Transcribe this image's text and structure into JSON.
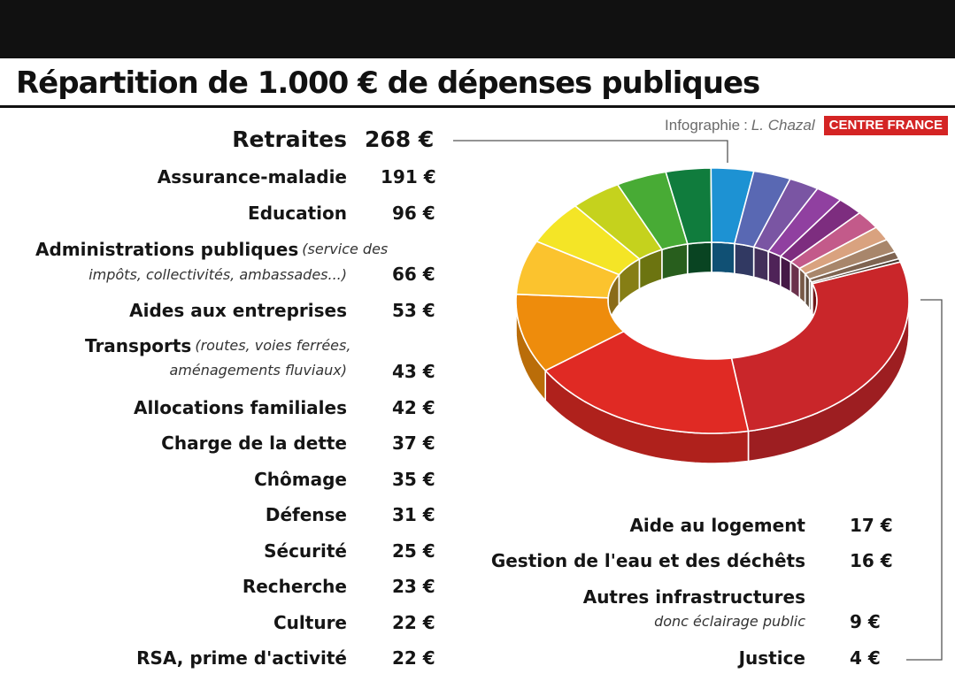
{
  "header": {
    "title": "Répartition de 1.000 € de dépenses publiques",
    "credit_label": "Infographie",
    "credit_sep": ":",
    "credit_author": "L. Chazal",
    "brand": "CENTRE FRANCE"
  },
  "chart_data": {
    "type": "pie",
    "style": "3d-donut",
    "title": "Répartition de 1.000 € de dépenses publiques",
    "unit": "€",
    "total": 1000,
    "slices": [
      {
        "label": "Retraites",
        "value": 268,
        "display": "268 €",
        "color": "#c9262a"
      },
      {
        "label": "Assurance-maladie",
        "value": 191,
        "display": "191 €",
        "color": "#e02a24"
      },
      {
        "label": "Education",
        "value": 96,
        "display": "96 €",
        "color": "#ee8c0c"
      },
      {
        "label": "Administrations publiques",
        "note": "(service des impôts, collectivités, ambassades...)",
        "value": 66,
        "display": "66 €",
        "color": "#fbc32e"
      },
      {
        "label": "Aides aux entreprises",
        "value": 53,
        "display": "53 €",
        "color": "#f4e526"
      },
      {
        "label": "Transports",
        "note": "(routes, voies ferrées, aménagements fluviaux)",
        "value": 43,
        "display": "43 €",
        "color": "#c5d21d"
      },
      {
        "label": "Allocations familiales",
        "value": 42,
        "display": "42 €",
        "color": "#48ab35"
      },
      {
        "label": "Charge de la dette",
        "value": 37,
        "display": "37 €",
        "color": "#107c3d"
      },
      {
        "label": "Chômage",
        "value": 35,
        "display": "35 €",
        "color": "#1d92d3"
      },
      {
        "label": "Défense",
        "value": 31,
        "display": "31 €",
        "color": "#5968b3"
      },
      {
        "label": "Sécurité",
        "value": 25,
        "display": "25 €",
        "color": "#7a55a3"
      },
      {
        "label": "Recherche",
        "value": 23,
        "display": "23 €",
        "color": "#9040a0"
      },
      {
        "label": "Culture",
        "value": 22,
        "display": "22 €",
        "color": "#7d2d7f"
      },
      {
        "label": "RSA, prime d'activité",
        "value": 22,
        "display": "22 €",
        "color": "#c35a8a"
      },
      {
        "label": "Aide au logement",
        "value": 17,
        "display": "17 €",
        "color": "#d9a27f"
      },
      {
        "label": "Gestion de l'eau et des déchêts",
        "value": 16,
        "display": "16 €",
        "color": "#a8866b"
      },
      {
        "label": "Autres infrastructures",
        "note": "donc éclairage public",
        "value": 9,
        "display": "9 €",
        "color": "#7e6451"
      },
      {
        "label": "Justice",
        "value": 4,
        "display": "4 €",
        "color": "#4a3a30"
      }
    ]
  }
}
